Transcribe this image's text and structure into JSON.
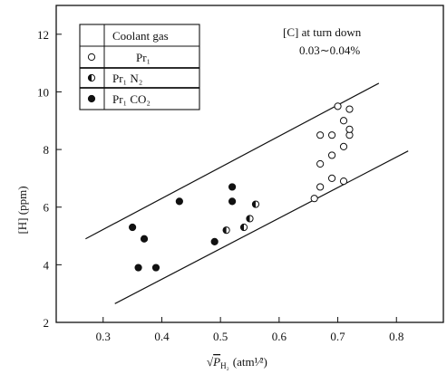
{
  "chart_data": {
    "type": "scatter",
    "xlim": [
      0.22,
      0.88
    ],
    "ylim": [
      2,
      13
    ],
    "xticks": [
      0.3,
      0.4,
      0.5,
      0.6,
      0.7,
      0.8
    ],
    "xtick_labels": [
      "0.3",
      "0.4",
      "0.5",
      "0.6",
      "0.7",
      "0.8"
    ],
    "yticks": [
      2,
      4,
      6,
      8,
      10,
      12
    ],
    "ytick_labels": [
      "2",
      "4",
      "6",
      "8",
      "10",
      "12"
    ],
    "xlabel": "√P̅H₂ (atm¹⁄²)",
    "xlabel_main": "√",
    "xlabel_var": "P",
    "xlabel_sub": "H₂",
    "xlabel_unit": "(atm¹⁄²)",
    "ylabel": "[H] (ppm)",
    "grid": false,
    "legend_placement": "top-left",
    "legend_title": "Coolant gas",
    "annotation": {
      "line1": "[C] at turn down",
      "line2": "0.03∼0.04%"
    },
    "series": [
      {
        "name": "Pr₁",
        "legend_label": "Pr₁",
        "marker": "open",
        "points": [
          [
            0.66,
            6.3
          ],
          [
            0.67,
            6.7
          ],
          [
            0.67,
            7.5
          ],
          [
            0.67,
            8.5
          ],
          [
            0.69,
            7.0
          ],
          [
            0.69,
            7.8
          ],
          [
            0.69,
            8.5
          ],
          [
            0.7,
            9.5
          ],
          [
            0.71,
            6.9
          ],
          [
            0.71,
            8.1
          ],
          [
            0.71,
            9.0
          ],
          [
            0.72,
            8.5
          ],
          [
            0.72,
            8.7
          ],
          [
            0.72,
            9.4
          ]
        ]
      },
      {
        "name": "Pr₁ N₂",
        "legend_label": "Pr₁ N₂",
        "marker": "half",
        "points": [
          [
            0.51,
            5.2
          ],
          [
            0.54,
            5.3
          ],
          [
            0.55,
            5.6
          ],
          [
            0.56,
            6.1
          ]
        ]
      },
      {
        "name": "Pr₁ CO₂",
        "legend_label": "Pr₁ CO₂",
        "marker": "filled",
        "points": [
          [
            0.35,
            5.3
          ],
          [
            0.36,
            3.9
          ],
          [
            0.37,
            4.9
          ],
          [
            0.39,
            3.9
          ],
          [
            0.43,
            6.2
          ],
          [
            0.49,
            4.8
          ],
          [
            0.52,
            6.2
          ],
          [
            0.52,
            6.7
          ]
        ]
      }
    ],
    "band_lines": [
      {
        "name": "upper-bound",
        "x": [
          0.27,
          0.77
        ],
        "y": [
          4.9,
          10.3
        ]
      },
      {
        "name": "lower-bound",
        "x": [
          0.32,
          0.82
        ],
        "y": [
          2.65,
          7.95
        ]
      }
    ]
  }
}
